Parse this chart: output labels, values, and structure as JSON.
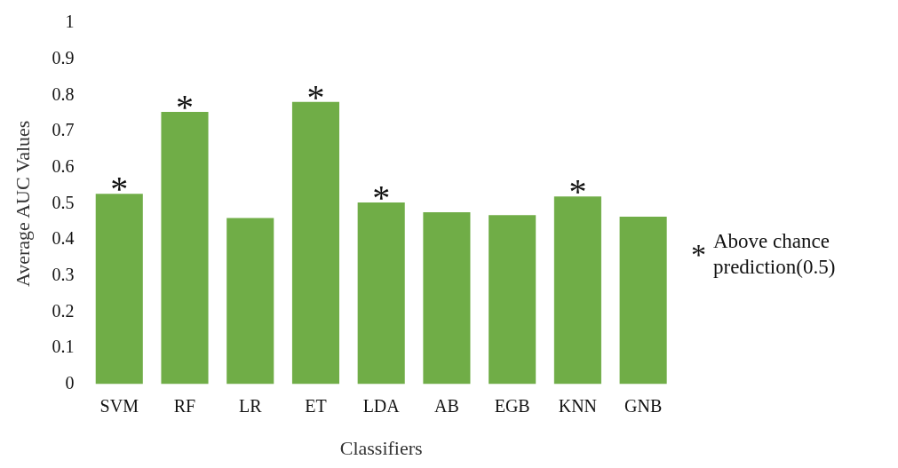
{
  "chart_data": {
    "type": "bar",
    "xlabel": "Classifiers",
    "ylabel": "Average AUC Values",
    "categories": [
      "SVM",
      "RF",
      "LR",
      "ET",
      "LDA",
      "AB",
      "EGB",
      "KNN",
      "GNB"
    ],
    "values": [
      0.527,
      0.754,
      0.46,
      0.782,
      0.503,
      0.476,
      0.468,
      0.52,
      0.464
    ],
    "color": "#70ad47",
    "ylim": [
      0,
      1
    ],
    "yticks": [
      0,
      0.1,
      0.2,
      0.3,
      0.4,
      0.5,
      0.6,
      0.7,
      0.8,
      0.9,
      1
    ],
    "grid": false,
    "legend": false,
    "annotations": [
      {
        "text": "*",
        "x": "SVM",
        "y": 0.527
      },
      {
        "text": "*",
        "x": "RF",
        "y": 0.754
      },
      {
        "text": "*",
        "x": "ET",
        "y": 0.782
      },
      {
        "text": "*",
        "x": "LDA",
        "y": 0.503
      },
      {
        "text": "*",
        "x": "KNN",
        "y": 0.52
      },
      "* Above chance prediction(0.5)"
    ]
  }
}
